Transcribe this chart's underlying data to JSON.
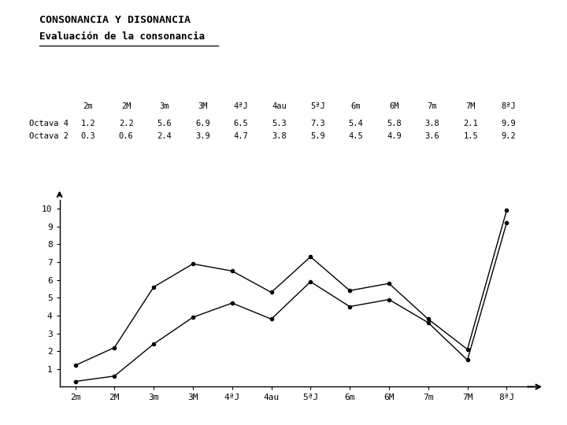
{
  "title": "CONSONANCIA Y DISONANCIA",
  "subtitle": "Evaluación de la consonancia",
  "categories": [
    "2m",
    "2M",
    "3m",
    "3M",
    "4ªJ",
    "4au",
    "5ªJ",
    "6m",
    "6M",
    "7m",
    "7M",
    "8ªJ"
  ],
  "octava4": [
    1.2,
    2.2,
    5.6,
    6.9,
    6.5,
    5.3,
    7.3,
    5.4,
    5.8,
    3.8,
    2.1,
    9.9
  ],
  "octava2": [
    0.3,
    0.6,
    2.4,
    3.9,
    4.7,
    3.8,
    5.9,
    4.5,
    4.9,
    3.6,
    1.5,
    9.2
  ],
  "octava4_label": "Octava 4",
  "octava2_label": "Octava 2",
  "bg_color": "#ffffff",
  "line_color": "#000000",
  "yticks": [
    1,
    2,
    3,
    4,
    5,
    6,
    7,
    8,
    9,
    10
  ]
}
